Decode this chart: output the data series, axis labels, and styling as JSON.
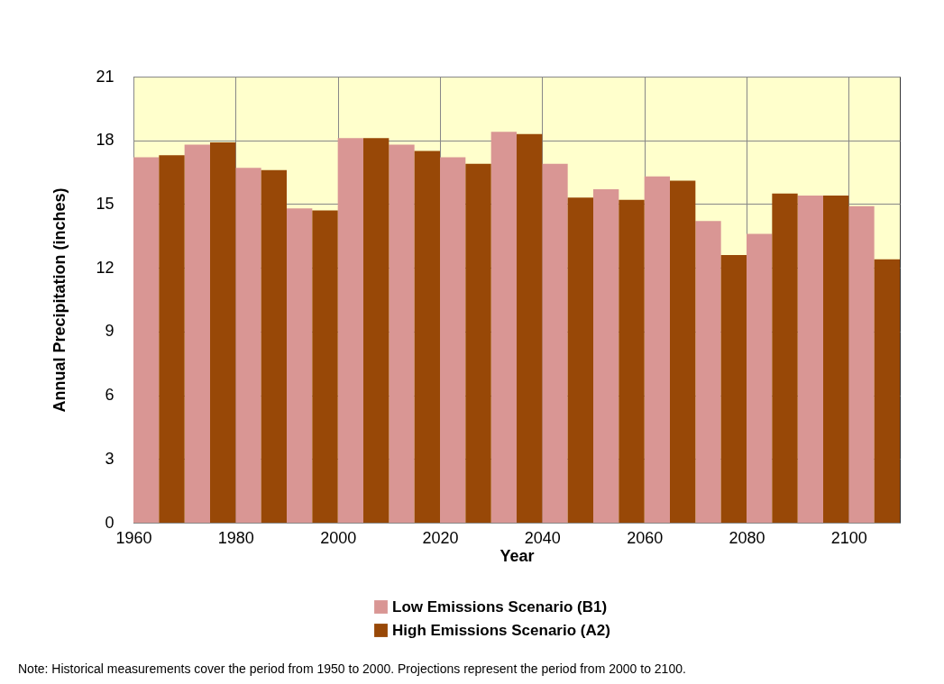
{
  "chart_data": {
    "type": "bar",
    "xlabel": "Year",
    "ylabel": "Annual Precipitation  (inches)",
    "xlim": [
      1960,
      2110
    ],
    "xticks": [
      1960,
      1980,
      2000,
      2020,
      2040,
      2060,
      2080,
      2100
    ],
    "ylim": [
      0,
      21
    ],
    "yticks": [
      0,
      3,
      6,
      9,
      12,
      15,
      18,
      21
    ],
    "grid": true,
    "legend": "bottom",
    "series": [
      {
        "name": "Low Emissions Scenario (B1)",
        "color": "#d99694",
        "x": [
          1962.5,
          1972.5,
          1982.5,
          1992.5,
          2002.5,
          2012.5,
          2022.5,
          2032.5,
          2042.5,
          2052.5,
          2062.5,
          2072.5,
          2082.5,
          2092.5,
          2102.5
        ],
        "values": [
          17.2,
          17.8,
          16.7,
          14.8,
          18.1,
          17.8,
          17.2,
          18.4,
          16.9,
          15.7,
          16.3,
          14.2,
          13.6,
          15.4,
          14.9
        ]
      },
      {
        "name": "High Emissions Scenario (A2)",
        "color": "#984807",
        "x": [
          1967.5,
          1977.5,
          1987.5,
          1997.5,
          2007.5,
          2017.5,
          2027.5,
          2037.5,
          2047.5,
          2057.5,
          2067.5,
          2077.5,
          2087.5,
          2097.5,
          2107.5
        ],
        "values": [
          17.3,
          17.9,
          16.6,
          14.7,
          18.1,
          17.5,
          16.9,
          18.3,
          15.3,
          15.2,
          16.1,
          12.6,
          15.5,
          15.4,
          12.4
        ]
      }
    ],
    "annotations": [
      "Note: Historical measurements cover the period from 1950 to 2000.  Projections represent the period from 2000 to 2100."
    ]
  }
}
